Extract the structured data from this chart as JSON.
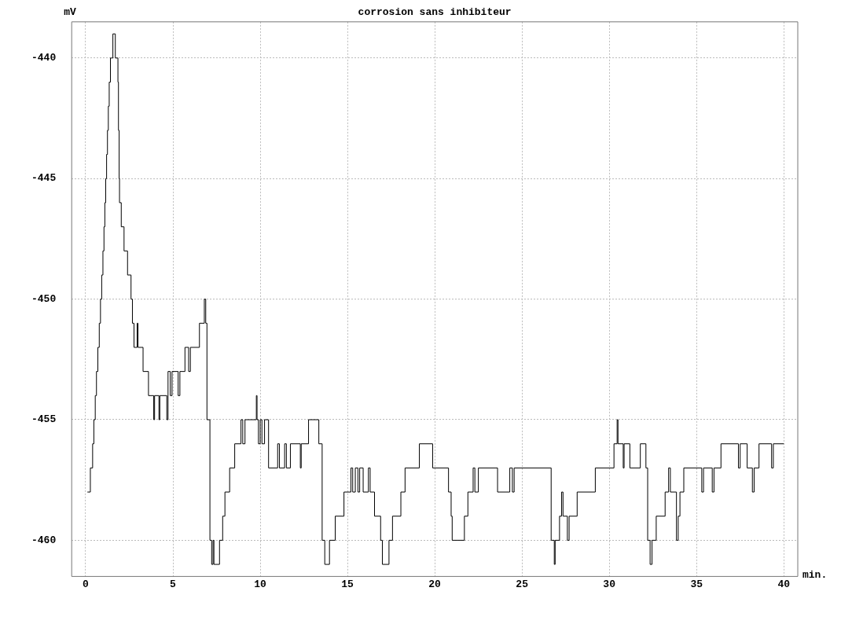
{
  "chart_data": {
    "type": "step",
    "title": "corrosion sans inhibiteur",
    "xlabel": "min.",
    "ylabel": "mV",
    "xlim": [
      -0.8,
      40.8
    ],
    "xticks": [
      0,
      5,
      10,
      15,
      20,
      25,
      30,
      35,
      40
    ],
    "ylim": [
      -461.5,
      -438.5
    ],
    "yticks": [
      -440,
      -445,
      -450,
      -455,
      -460
    ],
    "grid": true,
    "legend": false,
    "marker": "none",
    "line_style": "solid",
    "series": [
      {
        "color": "#000000",
        "x": [
          0.1,
          0.27,
          0.4,
          0.47,
          0.55,
          0.62,
          0.7,
          0.78,
          0.85,
          0.92,
          0.99,
          1.05,
          1.1,
          1.15,
          1.2,
          1.25,
          1.3,
          1.35,
          1.42,
          1.56,
          1.7,
          1.85,
          1.88,
          1.92,
          1.94,
          2.04,
          2.2,
          2.4,
          2.6,
          2.68,
          2.77,
          2.95,
          3.0,
          3.29,
          3.6,
          3.9,
          3.95,
          4.2,
          4.25,
          4.65,
          4.72,
          4.85,
          4.95,
          5.3,
          5.4,
          5.69,
          5.9,
          6.0,
          6.52,
          6.8,
          6.88,
          6.95,
          7.12,
          7.22,
          7.3,
          7.35,
          7.67,
          7.85,
          7.98,
          8.25,
          8.54,
          8.9,
          9.0,
          9.13,
          9.78,
          9.82,
          9.9,
          10.0,
          10.1,
          10.25,
          10.48,
          11.0,
          11.1,
          11.4,
          11.5,
          11.73,
          12.3,
          12.35,
          12.77,
          13.36,
          13.55,
          13.7,
          13.97,
          14.3,
          14.8,
          15.2,
          15.3,
          15.45,
          15.6,
          15.7,
          15.9,
          16.2,
          16.3,
          16.55,
          16.9,
          17.0,
          17.38,
          17.58,
          18.06,
          18.3,
          19.12,
          19.88,
          20.79,
          20.94,
          21.0,
          21.7,
          21.9,
          22.2,
          22.3,
          22.5,
          23.6,
          24.3,
          24.45,
          24.55,
          26.67,
          26.85,
          26.9,
          27.15,
          27.27,
          27.35,
          27.6,
          27.7,
          28.16,
          29.2,
          30.27,
          30.45,
          30.5,
          30.8,
          30.85,
          31.18,
          31.78,
          32.1,
          32.2,
          32.34,
          32.45,
          32.69,
          33.2,
          33.4,
          33.5,
          33.85,
          33.95,
          34.05,
          34.27,
          35.3,
          35.4,
          35.9,
          36.0,
          36.4,
          37.4,
          37.5,
          37.9,
          38.2,
          38.3,
          38.58,
          39.3,
          39.4,
          40.0
        ],
        "values": [
          -458,
          -457,
          -456,
          -455,
          -454,
          -453,
          -452,
          -451,
          -450,
          -449,
          -448,
          -447,
          -446,
          -445,
          -444,
          -443,
          -442,
          -441,
          -440,
          -439,
          -440,
          -441,
          -443,
          -445,
          -446,
          -447,
          -448,
          -449,
          -450,
          -451,
          -452,
          -451,
          -452,
          -453,
          -454,
          -455,
          -454,
          -455,
          -454,
          -455,
          -453,
          -454,
          -453,
          -454,
          -453,
          -452,
          -453,
          -452,
          -451,
          -450,
          -451,
          -455,
          -460,
          -461,
          -460,
          -461,
          -460,
          -459,
          -458,
          -457,
          -456,
          -455,
          -456,
          -455,
          -454,
          -455,
          -456,
          -455,
          -456,
          -455,
          -457,
          -456,
          -457,
          -456,
          -457,
          -456,
          -457,
          -456,
          -455,
          -456,
          -460,
          -461,
          -460,
          -459,
          -458,
          -457,
          -458,
          -457,
          -458,
          -457,
          -458,
          -457,
          -458,
          -459,
          -460,
          -461,
          -460,
          -459,
          -458,
          -457,
          -456,
          -457,
          -458,
          -459,
          -460,
          -459,
          -458,
          -457,
          -458,
          -457,
          -458,
          -457,
          -458,
          -457,
          -460,
          -461,
          -460,
          -459,
          -458,
          -459,
          -460,
          -459,
          -458,
          -457,
          -456,
          -455,
          -456,
          -457,
          -456,
          -457,
          -456,
          -457,
          -460,
          -461,
          -460,
          -459,
          -458,
          -457,
          -458,
          -460,
          -459,
          -458,
          -457,
          -458,
          -457,
          -458,
          -457,
          -456,
          -457,
          -456,
          -457,
          -458,
          -457,
          -456,
          -457,
          -456,
          -456
        ]
      }
    ]
  }
}
